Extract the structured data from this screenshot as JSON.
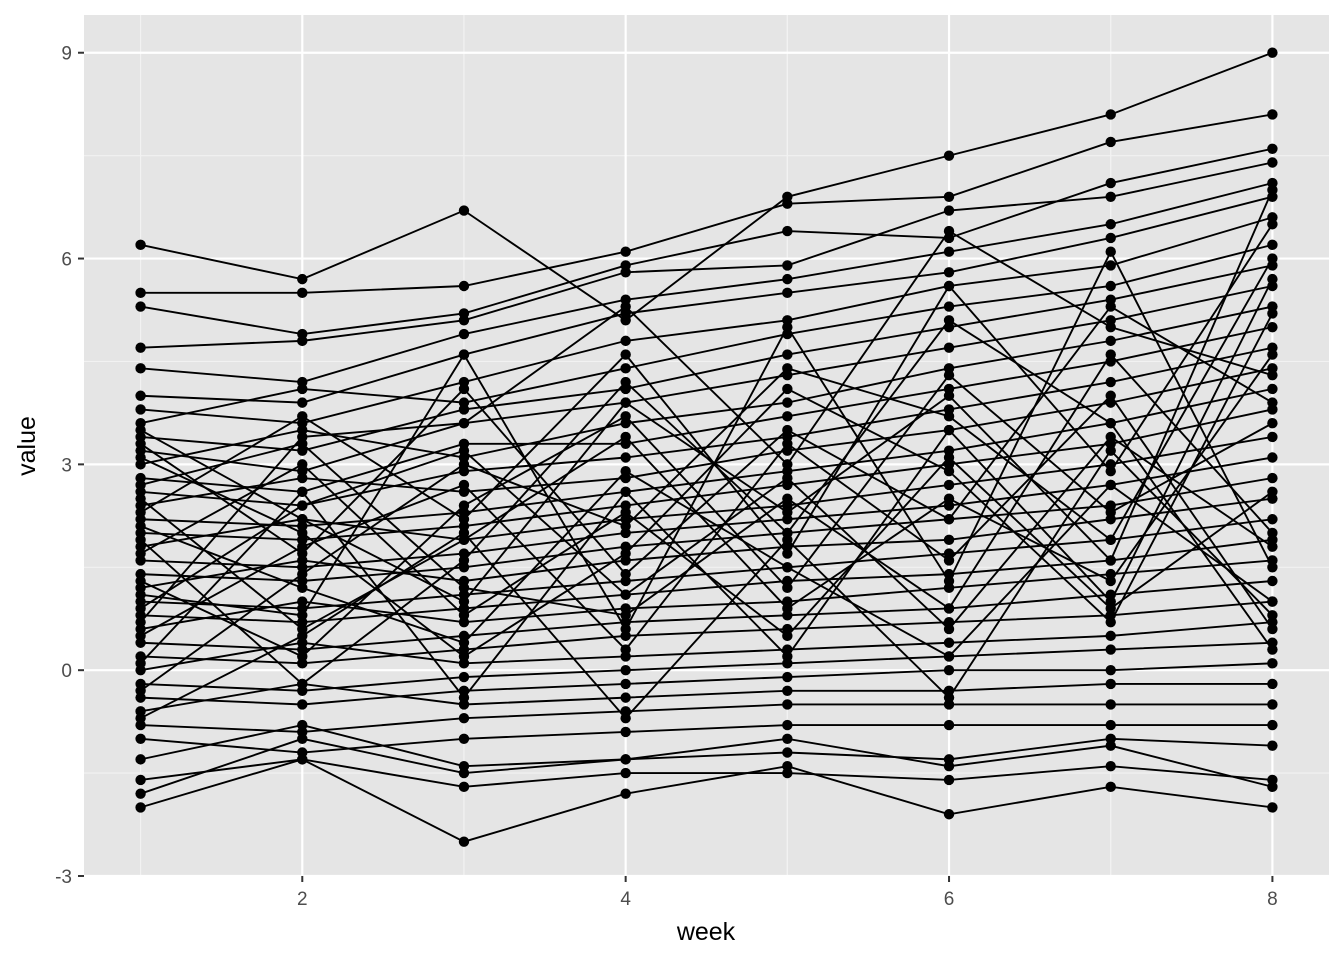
{
  "chart_data": {
    "type": "line",
    "title": "",
    "xlabel": "week",
    "ylabel": "value",
    "xlim": [
      0.65,
      8.35
    ],
    "ylim": [
      -3.0,
      9.55
    ],
    "x_ticks": [
      2,
      4,
      6,
      8
    ],
    "y_ticks": [
      -3,
      0,
      3,
      6,
      9
    ],
    "grid": true,
    "legend": "none",
    "colors": {
      "panel": "#e5e5e5",
      "grid_major": "#ffffff",
      "grid_minor": "#f2f2f2",
      "line": "#000000",
      "point": "#000000",
      "tick_text": "#4d4d4d"
    },
    "x": [
      1,
      2,
      3,
      4,
      5,
      6,
      7,
      8
    ],
    "series": [
      {
        "values": [
          6.2,
          5.7,
          6.7,
          5.1,
          6.9,
          7.5,
          8.1,
          9.0
        ]
      },
      {
        "values": [
          5.5,
          5.5,
          5.6,
          6.1,
          6.8,
          6.9,
          7.7,
          8.1
        ]
      },
      {
        "values": [
          5.3,
          4.9,
          5.2,
          5.9,
          6.4,
          6.3,
          7.1,
          7.6
        ]
      },
      {
        "values": [
          4.7,
          4.8,
          5.1,
          5.8,
          5.9,
          6.7,
          6.9,
          7.4
        ]
      },
      {
        "values": [
          4.4,
          4.2,
          4.9,
          5.4,
          5.7,
          6.1,
          6.5,
          7.1
        ]
      },
      {
        "values": [
          4.0,
          3.9,
          4.6,
          5.2,
          5.5,
          5.8,
          6.3,
          6.9
        ]
      },
      {
        "values": [
          3.8,
          3.6,
          4.2,
          4.8,
          5.1,
          5.6,
          5.9,
          6.6
        ]
      },
      {
        "values": [
          3.6,
          4.1,
          3.9,
          4.4,
          4.9,
          5.3,
          5.6,
          6.2
        ]
      },
      {
        "values": [
          3.4,
          3.2,
          3.8,
          4.1,
          4.6,
          5.0,
          5.4,
          5.9
        ]
      },
      {
        "values": [
          3.2,
          2.9,
          3.6,
          3.9,
          4.3,
          4.7,
          5.1,
          5.6
        ]
      },
      {
        "values": [
          3.0,
          3.5,
          3.1,
          3.6,
          3.9,
          4.4,
          4.8,
          5.3
        ]
      },
      {
        "values": [
          2.8,
          2.6,
          3.3,
          3.3,
          3.7,
          4.1,
          4.5,
          5.0
        ]
      },
      {
        "values": [
          2.6,
          2.4,
          2.9,
          3.1,
          3.4,
          3.8,
          4.2,
          4.7
        ]
      },
      {
        "values": [
          2.4,
          2.8,
          2.6,
          2.8,
          3.2,
          3.5,
          3.9,
          4.4
        ]
      },
      {
        "values": [
          2.2,
          2.1,
          2.3,
          2.6,
          2.9,
          3.2,
          3.6,
          4.1
        ]
      },
      {
        "values": [
          2.0,
          1.9,
          2.1,
          2.4,
          2.7,
          3.0,
          3.3,
          3.8
        ]
      },
      {
        "values": [
          1.8,
          2.2,
          1.9,
          2.2,
          2.4,
          2.7,
          3.0,
          3.4
        ]
      },
      {
        "values": [
          1.6,
          1.5,
          1.7,
          2.0,
          2.2,
          2.4,
          2.7,
          3.1
        ]
      },
      {
        "values": [
          1.4,
          1.3,
          1.5,
          1.8,
          2.0,
          2.2,
          2.4,
          2.8
        ]
      },
      {
        "values": [
          1.2,
          1.6,
          1.3,
          1.6,
          1.8,
          1.9,
          2.2,
          2.5
        ]
      },
      {
        "values": [
          1.0,
          0.9,
          1.1,
          1.3,
          1.5,
          1.7,
          1.9,
          2.2
        ]
      },
      {
        "values": [
          0.8,
          0.7,
          0.9,
          1.1,
          1.3,
          1.4,
          1.6,
          1.9
        ]
      },
      {
        "values": [
          0.6,
          1.0,
          0.7,
          0.9,
          1.0,
          1.2,
          1.4,
          1.6
        ]
      },
      {
        "values": [
          0.4,
          0.3,
          0.5,
          0.7,
          0.8,
          0.9,
          1.1,
          1.3
        ]
      },
      {
        "values": [
          0.2,
          0.1,
          0.3,
          0.5,
          0.6,
          0.7,
          0.8,
          1.0
        ]
      },
      {
        "values": [
          0.0,
          0.4,
          0.1,
          0.2,
          0.3,
          0.4,
          0.5,
          0.7
        ]
      },
      {
        "values": [
          -0.2,
          -0.3,
          -0.1,
          0.0,
          0.1,
          0.2,
          0.3,
          0.4
        ]
      },
      {
        "values": [
          -0.4,
          -0.5,
          -0.3,
          -0.2,
          -0.1,
          0.0,
          0.0,
          0.1
        ]
      },
      {
        "values": [
          -0.6,
          -0.2,
          -0.5,
          -0.4,
          -0.3,
          -0.3,
          -0.2,
          -0.2
        ]
      },
      {
        "values": [
          -0.8,
          -0.9,
          -0.7,
          -0.6,
          -0.5,
          -0.5,
          -0.5,
          -0.5
        ]
      },
      {
        "values": [
          -1.0,
          -1.2,
          -1.0,
          -0.9,
          -0.8,
          -0.8,
          -0.8,
          -0.8
        ]
      },
      {
        "values": [
          -1.3,
          -0.8,
          -1.4,
          -1.3,
          -1.2,
          -1.3,
          -1.0,
          -1.1
        ]
      },
      {
        "values": [
          -1.6,
          -1.3,
          -1.7,
          -1.5,
          -1.5,
          -1.6,
          -1.4,
          -1.6
        ]
      },
      {
        "values": [
          -2.0,
          -1.3,
          -2.5,
          -1.8,
          -1.4,
          -2.1,
          -1.7,
          -2.0
        ]
      },
      {
        "values": [
          -1.8,
          -1.0,
          -1.5,
          -1.3,
          -1.0,
          -1.4,
          -1.1,
          -1.7
        ]
      },
      {
        "values": [
          2.1,
          1.2,
          0.4,
          2.9,
          1.5,
          0.2,
          2.7,
          1.0
        ]
      },
      {
        "values": [
          1.7,
          3.0,
          0.8,
          2.3,
          0.5,
          3.1,
          0.9,
          2.6
        ]
      },
      {
        "values": [
          0.9,
          2.4,
          3.2,
          1.1,
          2.8,
          0.6,
          3.4,
          1.8
        ]
      },
      {
        "values": [
          2.5,
          0.6,
          1.9,
          3.4,
          0.9,
          2.5,
          1.3,
          4.6
        ]
      },
      {
        "values": [
          0.5,
          1.8,
          2.7,
          0.3,
          3.3,
          1.6,
          4.0,
          0.6
        ]
      },
      {
        "values": [
          3.1,
          2.0,
          0.2,
          1.7,
          4.1,
          2.9,
          0.7,
          5.2
        ]
      },
      {
        "values": [
          1.3,
          0.2,
          2.4,
          3.7,
          1.2,
          4.3,
          2.3,
          3.6
        ]
      },
      {
        "values": [
          2.7,
          3.3,
          1.2,
          0.8,
          2.5,
          0.9,
          4.6,
          2.0
        ]
      },
      {
        "values": [
          -0.3,
          1.4,
          3.0,
          2.1,
          4.4,
          3.7,
          1.9,
          6.0
        ]
      },
      {
        "values": [
          1.9,
          -0.2,
          1.6,
          4.2,
          2.0,
          5.1,
          3.6,
          0.3
        ]
      },
      {
        "values": [
          3.3,
          1.7,
          4.1,
          1.4,
          3.5,
          2.2,
          5.3,
          3.9
        ]
      },
      {
        "values": [
          0.1,
          2.6,
          -0.4,
          2.6,
          0.2,
          3.5,
          1.0,
          5.7
        ]
      },
      {
        "values": [
          2.3,
          3.7,
          2.2,
          4.6,
          1.7,
          5.6,
          2.9,
          6.5
        ]
      },
      {
        "values": [
          1.1,
          0.8,
          4.6,
          0.6,
          5.0,
          1.3,
          6.1,
          1.5
        ]
      },
      {
        "values": [
          3.5,
          2.2,
          1.0,
          3.9,
          2.3,
          4.0,
          1.6,
          7.0
        ]
      },
      {
        "values": [
          -0.7,
          0.5,
          2.0,
          -0.7,
          1.9,
          -0.4,
          3.2,
          0.8
        ]
      },
      {
        "values": [
          0.7,
          3.4,
          3.6,
          5.3,
          3.0,
          6.4,
          5.0,
          4.3
        ]
      }
    ]
  }
}
